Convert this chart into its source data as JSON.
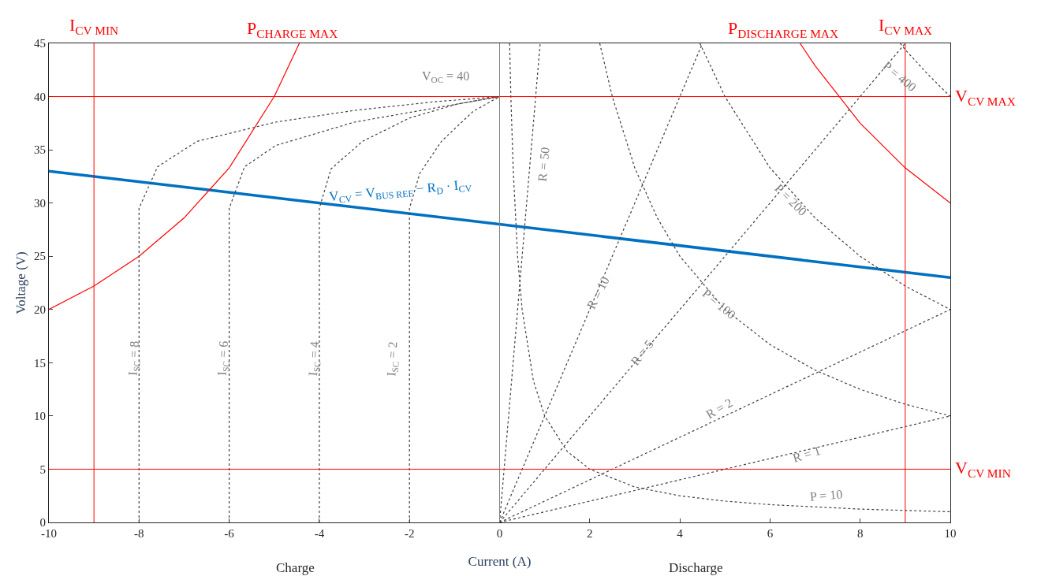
{
  "chart_data": {
    "type": "line",
    "xlabel": "Current (A)",
    "ylabel": "Voltage (V)",
    "xlim": [
      -10,
      10
    ],
    "xticks": [
      -10,
      -8,
      -6,
      -4,
      -2,
      0,
      2,
      4,
      6,
      8,
      10
    ],
    "ylim": [
      0,
      45
    ],
    "yticks": [
      0,
      5,
      10,
      15,
      20,
      25,
      30,
      35,
      40,
      45
    ],
    "legend": false,
    "marker": "none",
    "series": [
      {
        "color": "#0070c0",
        "line_style": "solid",
        "x": [
          -10,
          10
        ],
        "values": [
          33,
          23
        ]
      },
      {
        "name": "P$_{CHARGE MAX}$",
        "color": "#ff0000",
        "line_style": "solid",
        "x": [
          -10,
          -9,
          -8,
          -7,
          -6,
          -5,
          -4.444
        ],
        "values": [
          20,
          22.2,
          25,
          28.6,
          33.3,
          40,
          45
        ]
      },
      {
        "name": "P$_{DISCHARGE MAX}$",
        "color": "#ff0000",
        "line_style": "solid",
        "x": [
          6.667,
          7,
          8,
          9,
          10
        ],
        "values": [
          45,
          42.9,
          37.5,
          33.3,
          30
        ]
      },
      {
        "color": "#404040",
        "line_style": "dotted",
        "x": [
          0.222,
          0.25,
          0.3,
          0.4,
          0.5,
          0.75,
          1,
          1.5,
          2,
          3,
          4,
          5,
          6,
          8,
          10
        ],
        "values": [
          45,
          40,
          33.3,
          25,
          20,
          13.3,
          10,
          6.67,
          5,
          3.33,
          2.5,
          2,
          1.67,
          1.25,
          1
        ]
      },
      {
        "color": "#404040",
        "line_style": "dotted",
        "x": [
          2.222,
          2.5,
          3,
          3.5,
          4,
          5,
          6,
          7,
          8,
          9,
          10
        ],
        "values": [
          45,
          40,
          33.3,
          28.6,
          25,
          20,
          16.7,
          14.3,
          12.5,
          11.1,
          10
        ]
      },
      {
        "color": "#404040",
        "line_style": "dotted",
        "x": [
          4.444,
          5,
          6,
          7,
          8,
          9,
          10
        ],
        "values": [
          45,
          40,
          33.3,
          28.6,
          25,
          22.2,
          20
        ]
      },
      {
        "color": "#404040",
        "line_style": "dotted",
        "x": [
          8.889,
          9,
          9.5,
          10
        ],
        "values": [
          45,
          44.4,
          42.1,
          40
        ]
      },
      {
        "color": "#404040",
        "line_style": "dotted",
        "x": [
          0,
          0.9
        ],
        "values": [
          0,
          45
        ]
      },
      {
        "color": "#404040",
        "line_style": "dotted",
        "x": [
          0,
          4.5
        ],
        "values": [
          0,
          45
        ]
      },
      {
        "color": "#404040",
        "line_style": "dotted",
        "x": [
          0,
          9
        ],
        "values": [
          0,
          45
        ]
      },
      {
        "color": "#404040",
        "line_style": "dotted",
        "x": [
          0,
          10
        ],
        "values": [
          0,
          20
        ]
      },
      {
        "color": "#404040",
        "line_style": "dotted",
        "x": [
          0,
          10
        ],
        "values": [
          0,
          10
        ]
      },
      {
        "color": "#404040",
        "line_style": "dotted",
        "x": [
          -8,
          -8,
          -7.59,
          -6.71,
          -4.97,
          -3.22,
          -1.47,
          0
        ],
        "values": [
          0,
          29.5,
          33.4,
          35.8,
          37.6,
          38.7,
          39.5,
          40
        ]
      },
      {
        "color": "#404040",
        "line_style": "dotted",
        "x": [
          -6,
          -6,
          -5.66,
          -4.97,
          -3.22,
          -1.47,
          0
        ],
        "values": [
          0,
          29.5,
          33.4,
          35.4,
          37.6,
          38.9,
          40
        ]
      },
      {
        "color": "#404040",
        "line_style": "dotted",
        "x": [
          -4,
          -4,
          -3.74,
          -3.04,
          -1.99,
          -0.94,
          0
        ],
        "values": [
          0,
          29.5,
          33.2,
          35.8,
          38,
          39.3,
          40
        ]
      },
      {
        "color": "#404040",
        "line_style": "dotted",
        "x": [
          -2,
          -2,
          -1.77,
          -1.29,
          -0.59,
          0
        ],
        "values": [
          0,
          29.5,
          32.8,
          35.8,
          38.6,
          40
        ]
      }
    ],
    "ref_lines": [
      {
        "axis": "x",
        "value": -9,
        "label": "I$_{CV MIN}$",
        "color": "#ff0000"
      },
      {
        "axis": "x",
        "value": 9,
        "label": "I$_{CV MAX}$",
        "color": "#ff0000"
      },
      {
        "axis": "y",
        "value": 40,
        "label": "V$_{CV MAX}$",
        "color": "#ff0000"
      },
      {
        "axis": "y",
        "value": 5,
        "label": "V$_{CV MIN}$",
        "color": "#ff0000"
      },
      {
        "axis": "x",
        "value": 0,
        "color": "#808080"
      }
    ],
    "annotations": [
      "V$_{OC}$ = 40",
      "R = 50",
      "R = 10",
      "R = 5",
      "R = 2",
      "R = 1",
      "P = 10",
      "P = 100",
      "P = 200",
      "P = 400",
      "I$_{SC}$ = 8",
      "I$_{SC}$ = 6",
      "I$_{SC}$ = 4",
      "I$_{SC}$ = 2",
      "V$_{CV}$ = V$_{BUS REF}$ − R$_{D}$ · I$_{CV}$",
      "Charge",
      "Discharge"
    ]
  }
}
